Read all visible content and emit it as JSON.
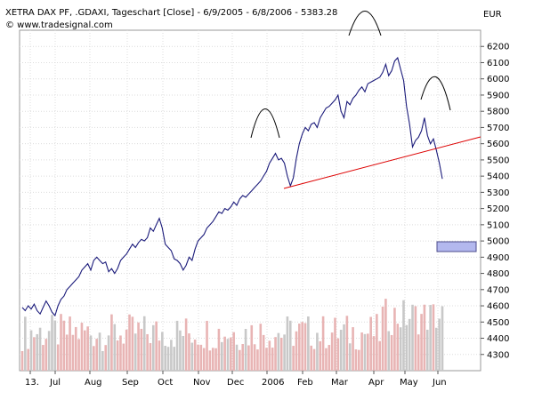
{
  "header": {
    "title": "XETRA DAX PF, .GDAXI, Tageschart [Close] - 6/9/2005 - 6/8/2006 - 5383.28",
    "source": "© www.tradesignal.com",
    "currency": "EUR"
  },
  "colors": {
    "price_line": "#1a1a7a",
    "trendline": "#dd0000",
    "volume_up": "#e8b4b4",
    "volume_down": "#c8c8c8",
    "grid": "#dcdcdc",
    "box_fill": "#b3b8ee"
  },
  "chart_data": {
    "type": "line",
    "title": "XETRA DAX PF, .GDAXI, Tageschart [Close] - 6/9/2005 - 6/8/2006 - 5383.28",
    "xlabel": "",
    "ylabel": "EUR",
    "x_tick_labels": [
      "13.",
      "Jul",
      "Aug",
      "Sep",
      "Oct",
      "Nov",
      "Dec",
      "2006",
      "Feb",
      "Mar",
      "Apr",
      "May",
      "Jun"
    ],
    "y_ticks": [
      4300,
      4400,
      4500,
      4600,
      4700,
      4800,
      4900,
      5000,
      5100,
      5200,
      5300,
      5400,
      5500,
      5600,
      5700,
      5800,
      5900,
      6000,
      6100,
      6200
    ],
    "ylim": [
      4200,
      6300
    ],
    "grid": true,
    "series": [
      {
        "values": [
          4590,
          4570,
          4600,
          4580,
          4610,
          4570,
          4550,
          4590,
          4630,
          4600,
          4560,
          4540,
          4600,
          4640,
          4660,
          4700,
          4720,
          4740,
          4760,
          4780,
          4820,
          4840,
          4860,
          4820,
          4880,
          4900,
          4880,
          4860,
          4870,
          4810,
          4830,
          4800,
          4830,
          4880,
          4900,
          4920,
          4950,
          4980,
          4960,
          4990,
          5010,
          5000,
          5020,
          5080,
          5060,
          5100,
          5140,
          5080,
          4980,
          4960,
          4940,
          4890,
          4880,
          4860,
          4820,
          4850,
          4900,
          4880,
          4950,
          5000,
          5020,
          5040,
          5080,
          5100,
          5120,
          5150,
          5180,
          5170,
          5200,
          5190,
          5210,
          5240,
          5220,
          5260,
          5280,
          5270,
          5290,
          5310,
          5330,
          5350,
          5370,
          5400,
          5430,
          5480,
          5510,
          5540,
          5500,
          5510,
          5480,
          5400,
          5340,
          5390,
          5510,
          5600,
          5660,
          5700,
          5680,
          5720,
          5730,
          5700,
          5760,
          5790,
          5820,
          5830,
          5850,
          5870,
          5900,
          5800,
          5760,
          5860,
          5840,
          5880,
          5900,
          5930,
          5950,
          5920,
          5970,
          5980,
          5990,
          6000,
          6010,
          6040,
          6090,
          6020,
          6050,
          6110,
          6130,
          6060,
          5990,
          5830,
          5720,
          5580,
          5620,
          5640,
          5680,
          5760,
          5650,
          5600,
          5630,
          5560,
          5480,
          5383
        ]
      }
    ],
    "volume": {
      "visible": true,
      "note": "volume histogram bars, no printed scale"
    },
    "annotations": [
      {
        "kind": "trendline",
        "color": "#dd0000"
      },
      {
        "kind": "arc",
        "label": "left shoulder"
      },
      {
        "kind": "arc",
        "label": "head"
      },
      {
        "kind": "arc",
        "label": "right shoulder"
      },
      {
        "kind": "box",
        "color": "#b3b8ee"
      }
    ]
  }
}
